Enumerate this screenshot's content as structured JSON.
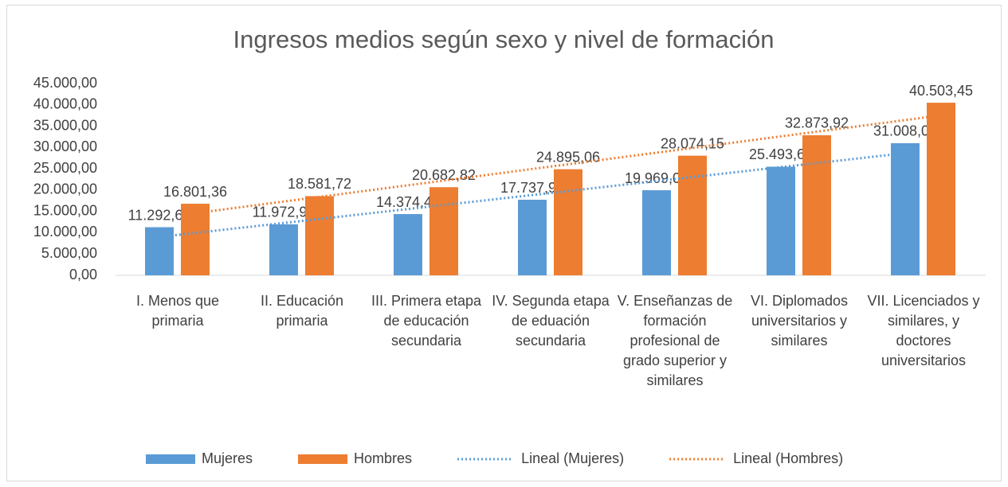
{
  "chart_data": {
    "type": "bar",
    "title": "Ingresos medios según sexo y nivel de formación",
    "categories": [
      "I. Menos que primaria",
      "II. Educación primaria",
      "III. Primera etapa de educación secundaria",
      "IV. Segunda etapa de eduación secundaria",
      "V. Enseñanzas de formación profesional de grado superior y similares",
      "VI. Diplomados universitarios y similares",
      "VII. Licenciados y similares, y doctores universitarios"
    ],
    "series": [
      {
        "name": "Mujeres",
        "color": "#5b9bd5",
        "values": [
          11292.66,
          11972.92,
          14374.47,
          17737.98,
          19969.08,
          25493.61,
          31008.07
        ],
        "value_labels": [
          "11.292,66",
          "11.972,92",
          "14.374,47",
          "17.737,98",
          "19.969,08",
          "25.493,61",
          "31.008,07"
        ]
      },
      {
        "name": "Hombres",
        "color": "#ed7d31",
        "values": [
          16801.36,
          18581.72,
          20682.82,
          24895.06,
          28074.15,
          32873.92,
          40503.45
        ],
        "value_labels": [
          "16.801,36",
          "18.581,72",
          "20.682,82",
          "24.895,06",
          "28.074,15",
          "32.873,92",
          "40.503,45"
        ]
      }
    ],
    "trendlines": [
      {
        "name": "Lineal (Mujeres)",
        "series": 0,
        "kind": "linear",
        "color": "#5b9bd5"
      },
      {
        "name": "Lineal (Hombres)",
        "series": 1,
        "kind": "linear",
        "color": "#ed7d31"
      }
    ],
    "ylim": [
      0,
      45000
    ],
    "yticks": [
      {
        "value": 0,
        "label": "0,00"
      },
      {
        "value": 5000,
        "label": "5.000,00"
      },
      {
        "value": 10000,
        "label": "10.000,00"
      },
      {
        "value": 15000,
        "label": "15.000,00"
      },
      {
        "value": 20000,
        "label": "20.000,00"
      },
      {
        "value": 25000,
        "label": "25.000,00"
      },
      {
        "value": 30000,
        "label": "30.000,00"
      },
      {
        "value": 35000,
        "label": "35.000,00"
      },
      {
        "value": 40000,
        "label": "40.000,00"
      },
      {
        "value": 45000,
        "label": "45.000,00"
      }
    ],
    "grid": false,
    "legend": "bottom"
  }
}
